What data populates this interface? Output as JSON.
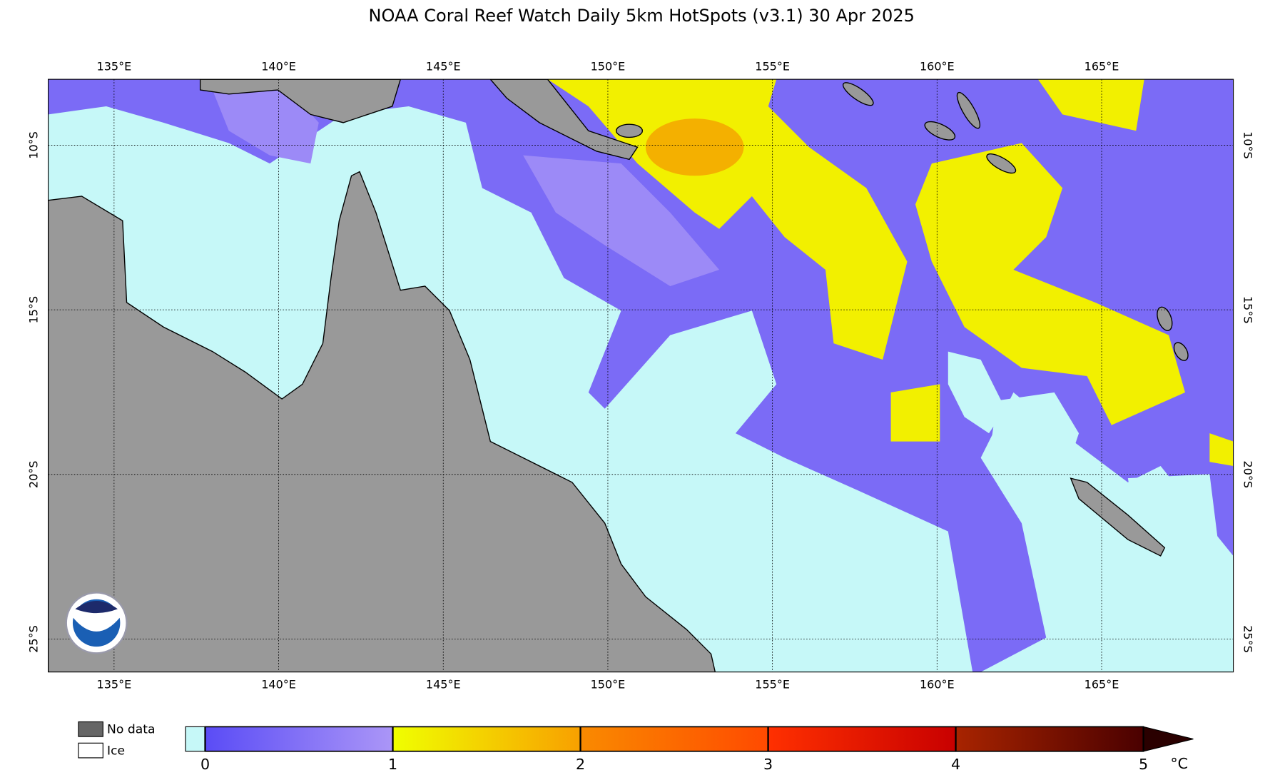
{
  "map": {
    "title": "NOAA Coral Reef Watch Daily 5km HotSpots  (v3.1)   30 Apr 2025",
    "lon_range": [
      133,
      169
    ],
    "lat_range": [
      -26,
      -8
    ],
    "lon_ticks": [
      {
        "value": 135,
        "label": "135°E"
      },
      {
        "value": 140,
        "label": "140°E"
      },
      {
        "value": 145,
        "label": "145°E"
      },
      {
        "value": 150,
        "label": "150°E"
      },
      {
        "value": 155,
        "label": "155°E"
      },
      {
        "value": 160,
        "label": "160°E"
      },
      {
        "value": 165,
        "label": "165°E"
      }
    ],
    "lat_ticks": [
      {
        "value": -10,
        "label": "10°S"
      },
      {
        "value": -15,
        "label": "15°S"
      },
      {
        "value": -20,
        "label": "20°S"
      },
      {
        "value": -25,
        "label": "25°S"
      }
    ]
  },
  "colorbar": {
    "range": [
      0,
      5
    ],
    "ticks": [
      0,
      1,
      2,
      3,
      4,
      5
    ],
    "unit": "°C",
    "below_color": "#c6f8f8",
    "bands": [
      [
        "#5a4cf6",
        "#ab96f7"
      ],
      [
        "#f0ff00",
        "#f8a000"
      ],
      [
        "#f98a00",
        "#ff4a00"
      ],
      [
        "#ff3000",
        "#c80000"
      ],
      [
        "#a82400",
        "#4a0000"
      ]
    ],
    "over_color": "#2a0000"
  },
  "legend": [
    {
      "label": "No data",
      "color": "#666666"
    },
    {
      "label": "Ice",
      "color": "#ffffff"
    }
  ]
}
